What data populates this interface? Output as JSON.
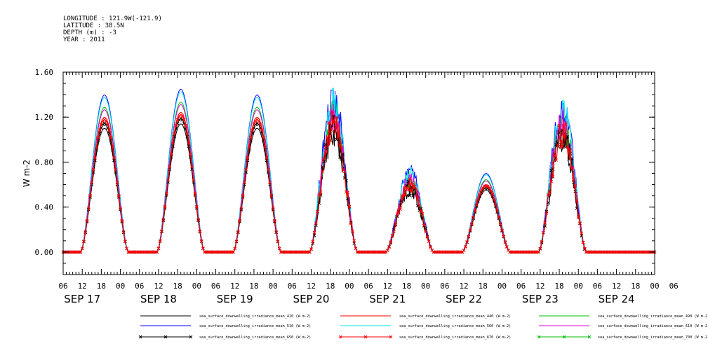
{
  "meta": {
    "longitude": "LONGITUDE : 121.9W(-121.9)",
    "latitude": "LATITUDE : 38.5N",
    "depth": "DEPTH (m) : -3",
    "year": "YEAR : 2011"
  },
  "chart_data": {
    "type": "line",
    "title": "",
    "ylabel": "W m-2",
    "xlabel": "",
    "ylim": [
      -0.2,
      1.6
    ],
    "xlim_hours": [
      0,
      186
    ],
    "yticks": [
      "0.00",
      "0.40",
      "0.80",
      "1.20",
      "1.60"
    ],
    "ytick_values": [
      0.0,
      0.4,
      0.8,
      1.2,
      1.6
    ],
    "hour_tick_labels": [
      "06",
      "12",
      "18",
      "00",
      "06",
      "12",
      "18",
      "00",
      "06",
      "12",
      "18",
      "00",
      "06",
      "12",
      "18",
      "00",
      "06",
      "12",
      "18",
      "00",
      "06",
      "12",
      "18",
      "00",
      "06",
      "12",
      "18",
      "00",
      "06",
      "12",
      "18",
      "00",
      "06"
    ],
    "day_labels": [
      "SEP 17",
      "SEP 18",
      "SEP 19",
      "SEP 20",
      "SEP 21",
      "SEP 22",
      "SEP 23",
      "SEP 24"
    ],
    "days": [
      {
        "label": "SEP 17",
        "peak_410": 1.1
      },
      {
        "label": "SEP 18",
        "peak_410": 1.14
      },
      {
        "label": "SEP 19",
        "peak_410": 1.1
      },
      {
        "label": "SEP 20",
        "peak_410": 1.05
      },
      {
        "label": "SEP 21",
        "peak_410": 0.55
      },
      {
        "label": "SEP 22",
        "peak_410": 0.55
      },
      {
        "label": "SEP 23",
        "peak_410": 1.0
      }
    ],
    "series": [
      {
        "name": "sea_surface_downwelling_irradiance_mean_410 (W m-2)",
        "color": "#000000",
        "marker": "",
        "scale": 1.0
      },
      {
        "name": "sea_surface_downwelling_irradiance_mean_440 (W m-2)",
        "color": "#ff0000",
        "marker": "",
        "scale": 1.09
      },
      {
        "name": "sea_surface_downwelling_irradiance_mean_490 (W m-2)",
        "color": "#00c000",
        "marker": "",
        "scale": 1.17
      },
      {
        "name": "sea_surface_downwelling_irradiance_mean_510 (W m-2)",
        "color": "#0000ff",
        "marker": "",
        "scale": 1.27
      },
      {
        "name": "sea_surface_downwelling_irradiance_mean_560 (W m-2)",
        "color": "#00e5ee",
        "marker": "",
        "scale": 1.25
      },
      {
        "name": "sea_surface_downwelling_irradiance_mean_610 (W m-2)",
        "color": "#e000e0",
        "marker": "",
        "scale": 1.15
      },
      {
        "name": "sea_surface_downwelling_irradiance_mean_650 (W m-2)",
        "color": "#000000",
        "marker": "x",
        "scale": 1.04
      },
      {
        "name": "sea_surface_downwelling_irradiance_mean_670 (W m-2)",
        "color": "#ff0000",
        "marker": "x",
        "scale": 1.07
      },
      {
        "name": "sea_surface_downwelling_irradiance_mean_700 (W m-2) No Valid Data",
        "color": "#00c000",
        "marker": "x",
        "scale": 0
      }
    ]
  }
}
